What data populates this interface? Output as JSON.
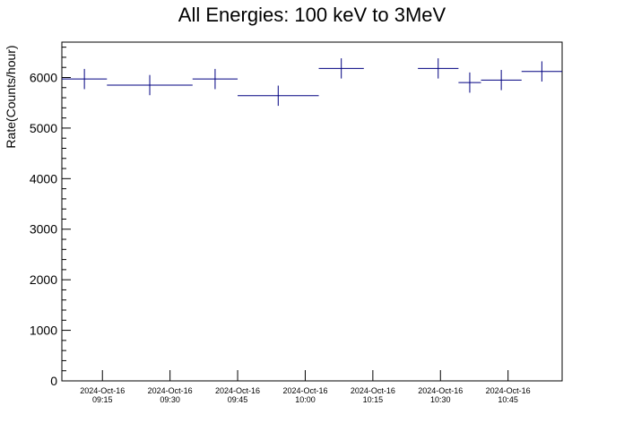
{
  "chart_data": {
    "type": "scatter",
    "title": "All Energies:  100 keV to 3MeV",
    "xlabel": "",
    "ylabel": "Rate(Counts/hour)",
    "ylim": [
      0,
      6700
    ],
    "xlim": [
      "2024-10-16 09:06",
      "2024-10-16 10:57"
    ],
    "grid": false,
    "y_ticks": [
      0,
      1000,
      2000,
      3000,
      4000,
      5000,
      6000
    ],
    "x_ticks": [
      {
        "date": "2024-Oct-16",
        "time": "09:15",
        "t": "2024-10-16 09:15"
      },
      {
        "date": "2024-Oct-16",
        "time": "09:30",
        "t": "2024-10-16 09:30"
      },
      {
        "date": "2024-Oct-16",
        "time": "09:45",
        "t": "2024-10-16 09:45"
      },
      {
        "date": "2024-Oct-16",
        "time": "10:00",
        "t": "2024-10-16 10:00"
      },
      {
        "date": "2024-Oct-16",
        "time": "10:15",
        "t": "2024-10-16 10:15"
      },
      {
        "date": "2024-Oct-16",
        "time": "10:30",
        "t": "2024-10-16 10:30"
      },
      {
        "date": "2024-Oct-16",
        "time": "10:45",
        "t": "2024-10-16 10:45"
      }
    ],
    "series": [
      {
        "color": "#000080",
        "points": [
          {
            "x_start": "2024-10-16 09:06",
            "x_end": "2024-10-16 09:16",
            "y": 5970,
            "yerr": 200
          },
          {
            "x_start": "2024-10-16 09:16",
            "x_end": "2024-10-16 09:35",
            "y": 5850,
            "yerr": 200
          },
          {
            "x_start": "2024-10-16 09:35",
            "x_end": "2024-10-16 09:45",
            "y": 5970,
            "yerr": 200
          },
          {
            "x_start": "2024-10-16 09:45",
            "x_end": "2024-10-16 10:03",
            "y": 5640,
            "yerr": 200
          },
          {
            "x_start": "2024-10-16 10:03",
            "x_end": "2024-10-16 10:13",
            "y": 6180,
            "yerr": 200
          },
          {
            "x_start": "2024-10-16 10:25",
            "x_end": "2024-10-16 10:34",
            "y": 6180,
            "yerr": 200
          },
          {
            "x_start": "2024-10-16 10:34",
            "x_end": "2024-10-16 10:39",
            "y": 5900,
            "yerr": 200
          },
          {
            "x_start": "2024-10-16 10:39",
            "x_end": "2024-10-16 10:48",
            "y": 5950,
            "yerr": 200
          },
          {
            "x_start": "2024-10-16 10:48",
            "x_end": "2024-10-16 10:57",
            "y": 6120,
            "yerr": 200
          }
        ]
      }
    ]
  }
}
